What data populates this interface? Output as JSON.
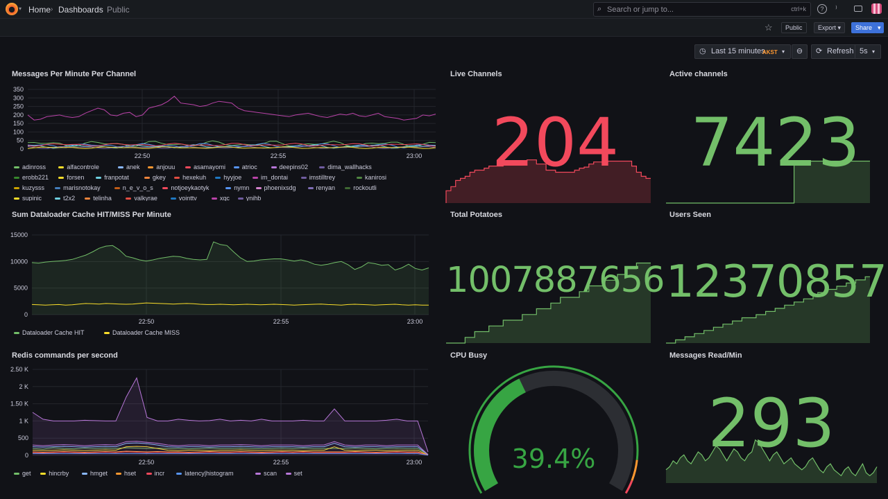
{
  "nav": {
    "home": "Home",
    "dashboards": "Dashboards",
    "current": "Public"
  },
  "search": {
    "placeholder": "Search or jump to...",
    "shortcut": "ctrl+k"
  },
  "toolbar": {
    "public_badge": "Public",
    "export_label": "Export",
    "share_label": "Share"
  },
  "time": {
    "range": "Last 15 minutes",
    "zone": "AKST",
    "refresh_label": "Refresh",
    "refresh_interval": "5s"
  },
  "colors": {
    "green": "#73bf69",
    "red": "#f2495c",
    "yellow": "#fade2a",
    "purple": "#b877d9",
    "blue": "#5794f2",
    "orange": "#ff9830"
  },
  "panels": {
    "messages": {
      "title": "Messages Per Minute Per Channel",
      "chart_data": {
        "type": "line",
        "y_ticks": [
          "350",
          "300",
          "250",
          "200",
          "150",
          "100",
          "50",
          "0"
        ],
        "ylim": [
          0,
          350
        ],
        "x_ticks": [
          "22:50",
          "22:55",
          "23:00"
        ],
        "series": [
          {
            "name": "adinross",
            "color": "#73bf69"
          },
          {
            "name": "alfacontrole",
            "color": "#fade2a"
          },
          {
            "name": "anek",
            "color": "#8ab8ff"
          },
          {
            "name": "anjouu",
            "color": "#ff9830"
          },
          {
            "name": "asamayomi",
            "color": "#f2495c"
          },
          {
            "name": "atrioc",
            "color": "#5794f2"
          },
          {
            "name": "deepins02",
            "color": "#b877d9"
          },
          {
            "name": "dima_wallhacks",
            "color": "#705da0"
          },
          {
            "name": "erobb221",
            "color": "#37872d"
          },
          {
            "name": "forsen",
            "color": "#fade2a"
          },
          {
            "name": "franpotat",
            "color": "#6ed0e0"
          },
          {
            "name": "gkey",
            "color": "#ef843c"
          },
          {
            "name": "hexekuh",
            "color": "#e24d42"
          },
          {
            "name": "hyyjoe",
            "color": "#1f78c1"
          },
          {
            "name": "im_dontai",
            "color": "#ba43a9"
          },
          {
            "name": "imstilltrey",
            "color": "#705da0"
          },
          {
            "name": "kanirosi",
            "color": "#508642"
          },
          {
            "name": "kuzysss",
            "color": "#cca300"
          },
          {
            "name": "marisnotokay",
            "color": "#447ebc"
          },
          {
            "name": "n_e_v_o_s",
            "color": "#c15c17"
          },
          {
            "name": "notjoeykaotyk",
            "color": "#f2495c"
          },
          {
            "name": "nymn",
            "color": "#5794f2"
          },
          {
            "name": "phoenixsdg",
            "color": "#d683ce"
          },
          {
            "name": "renyan",
            "color": "#806eb7"
          },
          {
            "name": "rockoutli",
            "color": "#3f6833"
          },
          {
            "name": "supinic",
            "color": "#fade2a"
          },
          {
            "name": "t2x2",
            "color": "#6ed0e0"
          },
          {
            "name": "telinha",
            "color": "#ef843c"
          },
          {
            "name": "valkyrae",
            "color": "#e24d42"
          },
          {
            "name": "vointtv",
            "color": "#1f78c1"
          },
          {
            "name": "xqc",
            "color": "#ba43a9"
          },
          {
            "name": "ynihb",
            "color": "#705da0"
          }
        ],
        "main_series_values": [
          200,
          170,
          175,
          190,
          195,
          200,
          190,
          185,
          190,
          210,
          225,
          240,
          230,
          200,
          195,
          210,
          215,
          190,
          200,
          240,
          250,
          260,
          280,
          310,
          270,
          265,
          260,
          250,
          255,
          270,
          280,
          275,
          270,
          240,
          225,
          220,
          215,
          210,
          205,
          200,
          195,
          190,
          200,
          205,
          210,
          200,
          190,
          185,
          195,
          205,
          200,
          210,
          195,
          190,
          200,
          210,
          190,
          185,
          180,
          170,
          175,
          180,
          200,
          195,
          205
        ]
      }
    },
    "live_channels": {
      "title": "Live Channels",
      "value": "204",
      "color": "#f2495c",
      "chart_data": {
        "type": "area",
        "values": [
          60,
          80,
          110,
          120,
          130,
          150,
          160,
          160,
          170,
          180,
          180,
          180,
          200,
          200,
          204,
          204,
          204,
          210,
          210,
          190,
          190,
          160,
          160,
          150,
          150,
          150,
          150,
          160,
          170,
          175,
          190,
          200,
          200,
          200,
          204,
          204,
          204,
          204,
          204,
          180,
          150,
          130,
          120,
          120
        ]
      }
    },
    "active_channels": {
      "title": "Active channels",
      "value": "7423",
      "color": "#73bf69",
      "chart_data": {
        "type": "area",
        "values": [
          0,
          0,
          0,
          0,
          0,
          0,
          0,
          0,
          0,
          0,
          0,
          0,
          0,
          0,
          0,
          0,
          0,
          0,
          0,
          0,
          0,
          0,
          0,
          0,
          0,
          0,
          0,
          7423,
          7423,
          7423,
          7423,
          7423,
          7423,
          7423,
          7423,
          7423,
          7423,
          7423,
          7423,
          7423,
          7423,
          7423,
          7423,
          7423
        ]
      }
    },
    "dataloader": {
      "title": "Sum Dataloader Cache HIT/MISS Per Minute",
      "chart_data": {
        "type": "line",
        "y_ticks": [
          "15000",
          "10000",
          "5000",
          "0"
        ],
        "ylim": [
          0,
          15000
        ],
        "x_ticks": [
          "22:50",
          "22:55",
          "23:00"
        ],
        "series": [
          {
            "name": "Dataloader Cache HIT",
            "color": "#73bf69",
            "values": [
              9800,
              9700,
              9900,
              10000,
              10100,
              10200,
              10400,
              10800,
              11200,
              11800,
              12500,
              12900,
              13000,
              12200,
              11000,
              10700,
              10300,
              10100,
              10300,
              10600,
              10800,
              11000,
              10900,
              10600,
              10400,
              10300,
              10400,
              13700,
              13200,
              13000,
              11800,
              10700,
              10000,
              10100,
              10300,
              10400,
              10500,
              10500,
              10300,
              10100,
              10300,
              10000,
              9500,
              9300,
              9500,
              9800,
              10000,
              9400,
              8500,
              9000,
              9800,
              9600,
              9300,
              9400,
              8400,
              8800,
              9500,
              8700,
              8400,
              8800
            ]
          },
          {
            "name": "Dataloader Cache MISS",
            "color": "#fade2a",
            "values": [
              1900,
              1850,
              1800,
              1850,
              1900,
              1800,
              1850,
              2000,
              2100,
              2050,
              2000,
              2100,
              2050,
              2000,
              1950,
              2000,
              2100,
              2200,
              2150,
              2100,
              2050,
              2000,
              2050,
              2100,
              2050,
              1950,
              1900,
              1900,
              1950,
              1900,
              1850,
              1900,
              1950,
              1900,
              1850,
              1900,
              1950,
              1900,
              1850,
              1800,
              1850,
              1900,
              1950,
              2000,
              1900,
              1850,
              1800,
              1900,
              1950,
              1900,
              1850,
              1800,
              1850,
              1900,
              1950,
              1850,
              1800,
              1850,
              1800,
              1800
            ]
          }
        ]
      }
    },
    "total_potatoes": {
      "title": "Total Potatoes",
      "value": "1007887656",
      "color": "#73bf69",
      "chart_data": {
        "type": "area",
        "values": [
          0,
          0,
          0,
          0,
          1,
          1,
          2,
          2,
          2,
          3,
          3,
          3,
          4,
          4,
          4,
          4,
          5,
          5,
          5,
          6,
          6,
          6,
          7,
          7,
          8,
          8,
          8,
          8,
          9,
          9,
          10,
          10,
          10,
          11,
          11,
          11,
          12,
          12,
          13,
          13,
          14,
          14,
          14,
          14
        ]
      }
    },
    "users_seen": {
      "title": "Users Seen",
      "value": "12370857",
      "color": "#73bf69",
      "chart_data": {
        "type": "area",
        "values": [
          0,
          0,
          1,
          1,
          2,
          2,
          3,
          3,
          4,
          4,
          5,
          5,
          6,
          6,
          7,
          7,
          8,
          8,
          8,
          9,
          9,
          10,
          10,
          11,
          11,
          12,
          12,
          13,
          13,
          14,
          14,
          15,
          16,
          16,
          17,
          17,
          18,
          18,
          19,
          19,
          20,
          20,
          21,
          21
        ]
      }
    },
    "redis": {
      "title": "Redis commands per second",
      "chart_data": {
        "type": "line",
        "y_ticks": [
          "2.50 K",
          "2 K",
          "1.50 K",
          "1 K",
          "500",
          "0"
        ],
        "ylim": [
          0,
          2500
        ],
        "x_ticks": [
          "22:50",
          "22:55",
          "23:00"
        ],
        "series": [
          {
            "name": "get",
            "color": "#73bf69",
            "values": [
              200,
              180,
              220,
              200,
              190,
              210,
              200,
              210,
              200,
              220,
              210,
              200,
              210,
              200,
              200,
              190,
              200,
              210,
              200,
              200,
              210,
              200,
              190,
              200,
              210,
              200,
              210,
              200,
              200,
              200,
              200,
              210,
              200,
              190,
              200,
              210,
              200,
              200,
              30
            ]
          },
          {
            "name": "hincrby",
            "color": "#fade2a",
            "values": [
              150,
              140,
              150,
              160,
              150,
              140,
              150,
              160,
              150,
              250,
              260,
              250,
              200,
              150,
              140,
              150,
              150,
              140,
              150,
              150,
              160,
              150,
              140,
              150,
              150,
              150,
              140,
              150,
              150,
              250,
              150,
              140,
              150,
              150,
              140,
              150,
              150,
              150,
              10
            ]
          },
          {
            "name": "hmget",
            "color": "#8ab8ff",
            "values": [
              250,
              240,
              250,
              260,
              250,
              240,
              250,
              260,
              250,
              350,
              360,
              340,
              300,
              250,
              240,
              250,
              250,
              240,
              250,
              250,
              260,
              250,
              240,
              250,
              250,
              250,
              240,
              250,
              250,
              350,
              250,
              240,
              250,
              250,
              240,
              250,
              250,
              250,
              20
            ]
          },
          {
            "name": "hset",
            "color": "#ff9830",
            "values": [
              100,
              90,
              100,
              110,
              100,
              90,
              100,
              110,
              100,
              120,
              110,
              100,
              110,
              100,
              100,
              90,
              100,
              110,
              100,
              100,
              110,
              100,
              90,
              100,
              110,
              100,
              110,
              100,
              100,
              100,
              100,
              110,
              100,
              90,
              100,
              110,
              100,
              100,
              10
            ]
          },
          {
            "name": "incr",
            "color": "#f2495c",
            "values": [
              80,
              70,
              80,
              90,
              80,
              70,
              80,
              90,
              80,
              100,
              90,
              80,
              90,
              80,
              80,
              70,
              80,
              90,
              80,
              80,
              90,
              80,
              70,
              80,
              90,
              80,
              90,
              80,
              80,
              80,
              80,
              90,
              80,
              70,
              80,
              90,
              80,
              80,
              5
            ]
          },
          {
            "name": "latency|histogram",
            "color": "#5794f2",
            "values": [
              50,
              50,
              50,
              50,
              50,
              50,
              50,
              50,
              50,
              50,
              50,
              50,
              50,
              50,
              50,
              50,
              50,
              50,
              50,
              50,
              50,
              50,
              50,
              50,
              50,
              50,
              50,
              50,
              50,
              50,
              50,
              50,
              50,
              50,
              50,
              50,
              50,
              50,
              5
            ]
          },
          {
            "name": "scan",
            "color": "#b877d9",
            "values": [
              1250,
              1050,
              1000,
              1000,
              1000,
              1020,
              1010,
              1000,
              1000,
              1700,
              2250,
              1100,
              1000,
              1000,
              1050,
              1020,
              1000,
              1010,
              1050,
              1000,
              1020,
              1000,
              1050,
              1000,
              1000,
              1000,
              1020,
              1000,
              1000,
              1350,
              1000,
              1000,
              1000,
              1000,
              1020,
              1050,
              1000,
              1000,
              100
            ]
          },
          {
            "name": "set",
            "color": "#b877d9",
            "values": [
              300,
              280,
              300,
              310,
              300,
              280,
              300,
              310,
              300,
              400,
              410,
              380,
              350,
              300,
              280,
              300,
              300,
              280,
              300,
              300,
              310,
              300,
              280,
              300,
              300,
              300,
              280,
              300,
              300,
              400,
              300,
              280,
              300,
              300,
              280,
              300,
              300,
              300,
              20
            ]
          }
        ]
      }
    },
    "cpu_busy": {
      "title": "CPU Busy",
      "value": "39.4%",
      "percent": 39.4,
      "color": "#37a543"
    },
    "messages_read": {
      "title": "Messages Read/Min",
      "value": "293",
      "color": "#73bf69",
      "chart_data": {
        "type": "area",
        "values": [
          40,
          50,
          70,
          60,
          80,
          90,
          70,
          60,
          80,
          100,
          90,
          70,
          80,
          100,
          120,
          110,
          90,
          70,
          90,
          110,
          100,
          80,
          70,
          90,
          100,
          140,
          130,
          110,
          90,
          70,
          90,
          100,
          80,
          60,
          70,
          80,
          60,
          50,
          40,
          50,
          70,
          80,
          60,
          40,
          30,
          50,
          60,
          40,
          30,
          20,
          40,
          50,
          30,
          20,
          40,
          60,
          30,
          20,
          30,
          50
        ]
      }
    }
  }
}
